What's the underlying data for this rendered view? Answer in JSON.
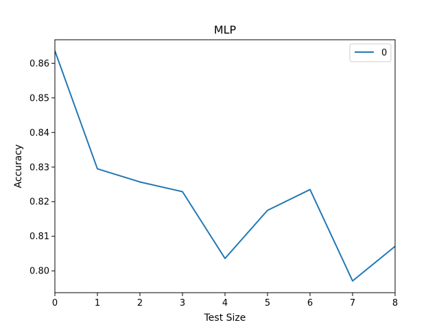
{
  "chart_data": {
    "type": "line",
    "title": "MLP",
    "xlabel": "Test Size",
    "ylabel": "Accuracy",
    "x": [
      0,
      1,
      2,
      3,
      4,
      5,
      6,
      7,
      8
    ],
    "series": [
      {
        "name": "0",
        "color": "#1f77b4",
        "values": [
          0.8636,
          0.8295,
          0.8257,
          0.8229,
          0.8036,
          0.8175,
          0.8235,
          0.7971,
          0.8071
        ]
      }
    ],
    "xlim": [
      0,
      8
    ],
    "ylim": [
      0.7937,
      0.8668
    ],
    "xticks": [
      "0",
      "1",
      "2",
      "3",
      "4",
      "5",
      "6",
      "7",
      "8"
    ],
    "yticks": [
      "0.80",
      "0.81",
      "0.82",
      "0.83",
      "0.84",
      "0.85",
      "0.86"
    ],
    "legend_position": "top-right",
    "grid": false
  }
}
